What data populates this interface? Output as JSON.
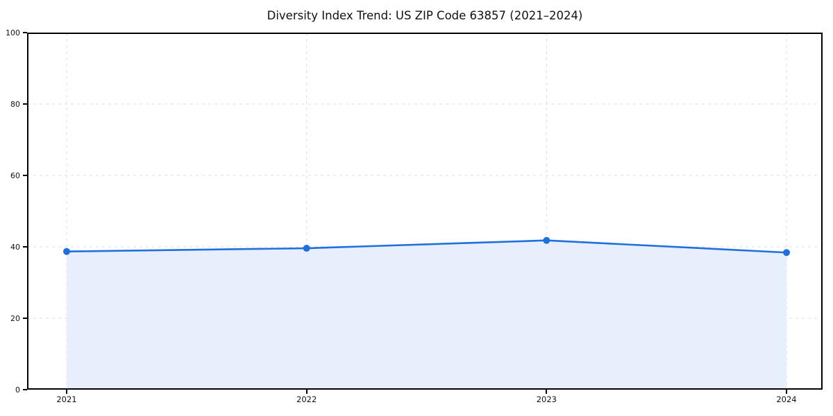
{
  "chart": {
    "colors": {
      "line": "#1f6fde",
      "marker": "#1f6fde",
      "fill": "#e8effc",
      "grid": "#dcdcdc",
      "spine": "#000000",
      "text": "#111111"
    }
  },
  "chart_data": {
    "type": "area",
    "title": "Diversity Index Trend: US ZIP Code 63857 (2021–2024)",
    "x": [
      2021,
      2022,
      2023,
      2024
    ],
    "xticklabels": [
      "2021",
      "2022",
      "2023",
      "2024"
    ],
    "series": [
      {
        "name": "Diversity Index",
        "values": [
          38.7,
          39.6,
          41.8,
          38.4
        ]
      }
    ],
    "xlabel": "",
    "ylabel": "",
    "ylim": [
      0,
      100
    ],
    "yticks": [
      0,
      20,
      40,
      60,
      80,
      100
    ],
    "grid": "dashed",
    "legend_position": "none"
  }
}
